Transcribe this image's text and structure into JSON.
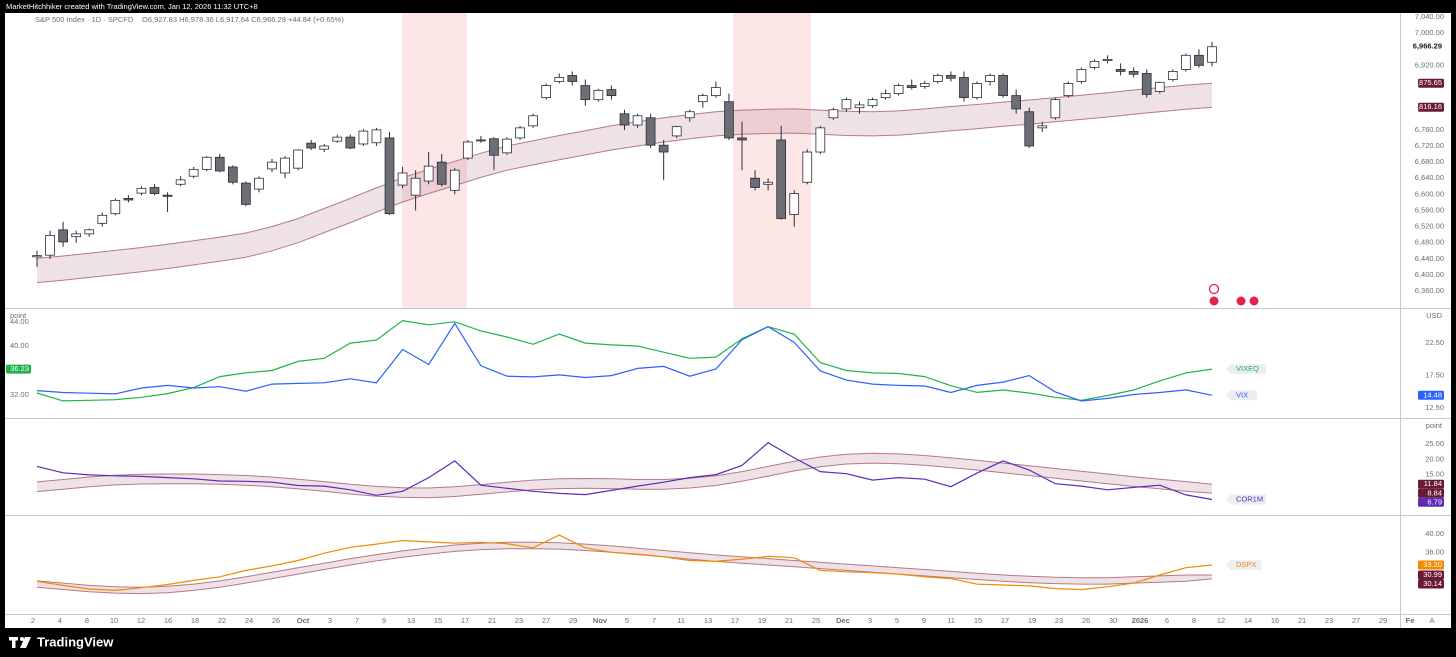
{
  "header": {
    "creator": "MarketHitchhiker created with TradingView.com, Jan 12, 2026 11:32 UTC+8"
  },
  "footer": {
    "brand": "TradingView",
    "scale_button": "A"
  },
  "chart_data": [
    {
      "type": "candlestick",
      "title": "S&P 500 Index · 1D · SPCFD",
      "quote": "O6,927.83 H6,978.36 L6,917.64 C6,966.29 +44.84 (+0.65%)",
      "up_color": "#ffffff",
      "down_color": "#6d6e75",
      "wick_color": "#2a2e39",
      "open": [
        6445,
        6449,
        6512,
        6495,
        6502,
        6528,
        6552,
        6590,
        6603,
        6617,
        6598,
        6625,
        6645,
        6662,
        6692,
        6668,
        6628,
        6613,
        6663,
        6653,
        6665,
        6727,
        6712,
        6732,
        6742,
        6725,
        6728,
        6740,
        6623,
        6598,
        6633,
        6680,
        6610,
        6690,
        6735,
        6738,
        6703,
        6740,
        6770,
        6840,
        6880,
        6895,
        6870,
        6835,
        6860,
        6800,
        6772,
        6790,
        6722,
        6745,
        6790,
        6830,
        6845,
        6830,
        6740,
        6640,
        6625,
        6735,
        6550,
        6630,
        6705,
        6790,
        6812,
        6815,
        6820,
        6840,
        6850,
        6870,
        6868,
        6880,
        6895,
        6890,
        6840,
        6880,
        6895,
        6845,
        6805,
        6765,
        6790,
        6845,
        6880,
        6915,
        6932,
        6910,
        6905,
        6900,
        6855,
        6885,
        6910,
        6945,
        6927.83
      ],
      "high": [
        6460,
        6510,
        6532,
        6510,
        6515,
        6555,
        6590,
        6598,
        6620,
        6625,
        6605,
        6645,
        6668,
        6695,
        6700,
        6672,
        6632,
        6645,
        6688,
        6695,
        6712,
        6735,
        6725,
        6748,
        6748,
        6762,
        6765,
        6755,
        6668,
        6660,
        6705,
        6700,
        6665,
        6735,
        6745,
        6742,
        6742,
        6770,
        6800,
        6875,
        6900,
        6905,
        6885,
        6862,
        6870,
        6810,
        6800,
        6800,
        6735,
        6770,
        6810,
        6850,
        6880,
        6850,
        6780,
        6660,
        6640,
        6770,
        6610,
        6712,
        6770,
        6815,
        6840,
        6830,
        6840,
        6860,
        6875,
        6885,
        6882,
        6900,
        6905,
        6905,
        6880,
        6900,
        6900,
        6860,
        6815,
        6780,
        6840,
        6880,
        6915,
        6935,
        6945,
        6925,
        6915,
        6910,
        6880,
        6910,
        6950,
        6960,
        6978.36
      ],
      "low": [
        6420,
        6440,
        6470,
        6480,
        6495,
        6520,
        6548,
        6580,
        6598,
        6598,
        6556,
        6620,
        6640,
        6658,
        6655,
        6625,
        6570,
        6605,
        6655,
        6640,
        6660,
        6710,
        6705,
        6728,
        6712,
        6720,
        6720,
        6549,
        6615,
        6560,
        6625,
        6620,
        6600,
        6685,
        6728,
        6660,
        6698,
        6735,
        6765,
        6835,
        6875,
        6870,
        6820,
        6830,
        6835,
        6760,
        6765,
        6715,
        6635,
        6740,
        6780,
        6815,
        6840,
        6735,
        6660,
        6610,
        6610,
        6537,
        6520,
        6625,
        6700,
        6785,
        6805,
        6800,
        6815,
        6835,
        6845,
        6860,
        6862,
        6875,
        6880,
        6830,
        6835,
        6870,
        6840,
        6800,
        6715,
        6755,
        6785,
        6840,
        6875,
        6910,
        6925,
        6895,
        6890,
        6840,
        6850,
        6880,
        6905,
        6915,
        6917.64
      ],
      "close": [
        6448,
        6498,
        6482,
        6502,
        6512,
        6548,
        6585,
        6586,
        6615,
        6602,
        6595,
        6636,
        6662,
        6692,
        6658,
        6630,
        6575,
        6640,
        6680,
        6690,
        6710,
        6715,
        6720,
        6742,
        6715,
        6757,
        6760,
        6552,
        6653,
        6640,
        6670,
        6625,
        6660,
        6730,
        6733,
        6697,
        6737,
        6765,
        6795,
        6870,
        6890,
        6880,
        6835,
        6858,
        6845,
        6772,
        6795,
        6722,
        6705,
        6768,
        6805,
        6845,
        6865,
        6740,
        6735,
        6617,
        6630,
        6540,
        6602,
        6705,
        6765,
        6810,
        6835,
        6822,
        6835,
        6850,
        6870,
        6865,
        6875,
        6895,
        6888,
        6840,
        6875,
        6895,
        6845,
        6812,
        6720,
        6770,
        6835,
        6875,
        6910,
        6930,
        6935,
        6905,
        6898,
        6848,
        6878,
        6905,
        6945,
        6920,
        6966.29
      ],
      "close_last_label": "6,966.29",
      "band": {
        "color": "#b5798c",
        "upper": [
          6441,
          6447,
          6454,
          6461,
          6468,
          6476,
          6485,
          6494,
          6504,
          6520,
          6540,
          6565,
          6590,
          6616,
          6641,
          6662,
          6682,
          6702,
          6720,
          6733,
          6746,
          6758,
          6770,
          6780,
          6790,
          6798,
          6805,
          6809,
          6811,
          6812,
          6809,
          6806,
          6805,
          6807,
          6812,
          6818,
          6823,
          6829,
          6834,
          6840,
          6846,
          6852,
          6859,
          6865,
          6871,
          6875.65
        ],
        "lower": [
          6381,
          6387,
          6394,
          6401,
          6408,
          6416,
          6425,
          6434,
          6444,
          6460,
          6480,
          6505,
          6530,
          6556,
          6581,
          6602,
          6622,
          6642,
          6660,
          6673,
          6686,
          6698,
          6710,
          6720,
          6730,
          6738,
          6745,
          6749,
          6751,
          6752,
          6749,
          6746,
          6745,
          6747,
          6752,
          6758,
          6763,
          6769,
          6774,
          6780,
          6786,
          6792,
          6799,
          6805,
          6811,
          6816.16
        ],
        "upper_last_label": "6,875.65",
        "lower_last_label": "6,816.16"
      },
      "ylim": [
        6318,
        7050
      ],
      "yticks": [
        {
          "value": 7040,
          "label": "7,040.00"
        },
        {
          "value": 7000,
          "label": "7,000.00"
        },
        {
          "value": 6920,
          "label": "6,920.00"
        },
        {
          "value": 6760,
          "label": "6,760.00"
        },
        {
          "value": 6720,
          "label": "6,720.00"
        },
        {
          "value": 6680,
          "label": "6,680.00"
        },
        {
          "value": 6640,
          "label": "6,640.00"
        },
        {
          "value": 6600,
          "label": "6,600.00"
        },
        {
          "value": 6560,
          "label": "6,560.00"
        },
        {
          "value": 6520,
          "label": "6,520.00"
        },
        {
          "value": 6480,
          "label": "6,480.00"
        },
        {
          "value": 6440,
          "label": "6,440.00"
        },
        {
          "value": 6400,
          "label": "6,400.00"
        },
        {
          "value": 6360,
          "label": "6,360.00"
        }
      ],
      "date_labels": [
        "2",
        "4",
        "8",
        "10",
        "12",
        "16",
        "18",
        "22",
        "24",
        "26",
        "Oct",
        "3",
        "7",
        "9",
        "13",
        "15",
        "17",
        "21",
        "23",
        "27",
        "29",
        "Nov",
        "5",
        "7",
        "11",
        "13",
        "17",
        "19",
        "21",
        "25",
        "Dec",
        "3",
        "5",
        "9",
        "11",
        "15",
        "17",
        "19",
        "23",
        "26",
        "30",
        "2026",
        "6",
        "8",
        "12",
        "14",
        "16",
        "21",
        "23",
        "27",
        "29",
        "Fe"
      ],
      "grid": false
    },
    {
      "type": "line",
      "units": {
        "left": "point",
        "right": "USD"
      },
      "yaxis_side": "left",
      "ylim": [
        28.2,
        46.1
      ],
      "yticks": [
        {
          "value": 44,
          "label": "44.00"
        },
        {
          "value": 40,
          "label": "40.00"
        },
        {
          "value": 32,
          "label": "32.00"
        }
      ],
      "y2lim": [
        11.0,
        27.7
      ],
      "y2ticks": [
        {
          "value": 22.5,
          "label": "22.50"
        },
        {
          "value": 17.5,
          "label": "17.50"
        },
        {
          "value": 12.5,
          "label": "12.50"
        }
      ],
      "series": [
        {
          "name": "VIXEQ",
          "color": "#1fb34a",
          "last_label": "36.23",
          "values": [
            32.3,
            31.0,
            31.1,
            31.2,
            31.6,
            32.2,
            33.2,
            35.0,
            35.6,
            36.0,
            37.5,
            38.0,
            40.5,
            41.0,
            44.2,
            43.5,
            44.0,
            42.5,
            41.5,
            40.3,
            42.0,
            40.5,
            40.2,
            40.0,
            39.0,
            38.0,
            38.2,
            41.2,
            43.2,
            42.0,
            37.3,
            36.0,
            35.6,
            35.5,
            35.0,
            33.5,
            32.4,
            32.8,
            32.3,
            31.6,
            31.1,
            31.9,
            32.8,
            34.3,
            35.6,
            36.23
          ]
        },
        {
          "name": "VIX",
          "color": "#2962ff",
          "axis": "y2",
          "last_label": "14.48",
          "values": [
            15.2,
            14.9,
            14.8,
            14.7,
            15.6,
            16.0,
            15.6,
            15.8,
            15.1,
            16.2,
            16.3,
            16.4,
            17.0,
            16.4,
            21.5,
            19.2,
            25.5,
            19.0,
            17.4,
            17.3,
            17.6,
            17.2,
            17.5,
            18.6,
            18.9,
            17.4,
            18.5,
            23.0,
            25.0,
            22.6,
            18.2,
            16.8,
            16.2,
            16.0,
            15.9,
            14.9,
            16.0,
            16.5,
            17.5,
            15.0,
            13.6,
            14.0,
            14.6,
            14.9,
            15.3,
            14.48
          ]
        }
      ],
      "grid": false
    },
    {
      "type": "line",
      "units": {
        "right": "point"
      },
      "yaxis_side": "right",
      "ylim": [
        1.7,
        33.3
      ],
      "yticks": [
        {
          "value": 25,
          "label": "25.00"
        },
        {
          "value": 20,
          "label": "20.00"
        },
        {
          "value": 15,
          "label": "15.00"
        }
      ],
      "series": [
        {
          "name": "COR1M",
          "color": "#5e2ab8",
          "last_label": "6.79",
          "values": [
            17.7,
            15.6,
            14.9,
            14.6,
            14.4,
            14.0,
            13.6,
            12.9,
            12.8,
            12.5,
            11.4,
            11.2,
            10.0,
            8.2,
            9.5,
            14.0,
            19.5,
            11.5,
            10.5,
            9.5,
            8.8,
            8.4,
            9.8,
            11.2,
            12.5,
            14.0,
            15.0,
            18.0,
            25.5,
            20.5,
            16.0,
            15.3,
            13.2,
            14.0,
            13.5,
            11.0,
            15.5,
            19.5,
            16.5,
            12.0,
            11.2,
            10.0,
            10.8,
            11.5,
            8.3,
            6.79
          ]
        }
      ],
      "band": {
        "color": "#b5798c",
        "upper": [
          12.6,
          13.4,
          14.2,
          14.8,
          15.1,
          15.2,
          15.2,
          15.0,
          14.7,
          14.2,
          13.5,
          12.7,
          11.8,
          11.1,
          10.7,
          10.6,
          11.0,
          11.7,
          12.5,
          13.2,
          13.6,
          13.7,
          13.6,
          13.4,
          13.4,
          13.8,
          14.6,
          16.0,
          17.7,
          19.4,
          20.8,
          21.7,
          22.0,
          21.8,
          21.3,
          20.5,
          19.7,
          18.8,
          17.9,
          17.0,
          16.1,
          15.2,
          14.3,
          13.5,
          12.7,
          11.84
        ],
        "lower": [
          9.4,
          10.2,
          11.0,
          11.6,
          11.9,
          12.0,
          12.0,
          11.8,
          11.5,
          11.0,
          10.3,
          9.5,
          8.6,
          7.9,
          7.5,
          7.4,
          7.8,
          8.5,
          9.3,
          10.0,
          10.4,
          10.5,
          10.4,
          10.2,
          10.2,
          10.6,
          11.4,
          12.8,
          14.5,
          16.2,
          17.6,
          18.5,
          18.8,
          18.6,
          18.1,
          17.3,
          16.5,
          15.6,
          14.7,
          13.8,
          12.9,
          12.0,
          11.1,
          10.3,
          9.5,
          8.84
        ],
        "upper_last_label": "11.84",
        "lower_last_label": "8.84"
      },
      "grid": false
    },
    {
      "type": "line",
      "yaxis_side": "right",
      "ylim": [
        22.4,
        44
      ],
      "yticks": [
        {
          "value": 40,
          "label": "40.00"
        },
        {
          "value": 36,
          "label": "36.00"
        }
      ],
      "series": [
        {
          "name": "DSPX",
          "color": "#f28a00",
          "last_label": "33.20",
          "values": [
            29.6,
            28.7,
            27.9,
            27.6,
            28.2,
            28.9,
            29.8,
            30.6,
            32.0,
            33.0,
            34.2,
            35.8,
            37.1,
            37.8,
            38.6,
            38.3,
            38.0,
            38.2,
            37.9,
            37.0,
            39.8,
            37.0,
            36.0,
            35.6,
            35.0,
            34.2,
            34.0,
            34.5,
            35.1,
            34.8,
            32.0,
            31.7,
            31.5,
            31.2,
            30.6,
            30.2,
            29.0,
            28.8,
            28.6,
            28.0,
            27.8,
            28.4,
            29.2,
            31.0,
            32.6,
            33.2
          ]
        }
      ],
      "band": {
        "color": "#b5798c",
        "upper": [
          29.7,
          29.2,
          28.7,
          28.4,
          28.3,
          28.5,
          29.0,
          29.7,
          30.6,
          31.6,
          32.6,
          33.6,
          34.6,
          35.5,
          36.3,
          37.0,
          37.6,
          38.0,
          38.2,
          38.2,
          38.1,
          37.8,
          37.4,
          36.9,
          36.4,
          35.9,
          35.4,
          35.0,
          34.6,
          34.2,
          33.8,
          33.4,
          33.0,
          32.6,
          32.2,
          31.8,
          31.4,
          31.0,
          30.7,
          30.5,
          30.4,
          30.4,
          30.6,
          30.8,
          31.0,
          30.99
        ],
        "lower": [
          28.3,
          27.8,
          27.3,
          27.0,
          26.9,
          27.1,
          27.6,
          28.3,
          29.2,
          30.2,
          31.2,
          32.2,
          33.2,
          34.1,
          34.9,
          35.6,
          36.2,
          36.6,
          36.8,
          36.8,
          36.7,
          36.4,
          36.0,
          35.5,
          35.0,
          34.5,
          34.0,
          33.6,
          33.2,
          32.8,
          32.4,
          32.0,
          31.6,
          31.2,
          30.8,
          30.4,
          30.0,
          29.6,
          29.3,
          29.1,
          29.0,
          29.0,
          29.2,
          29.4,
          29.6,
          30.14
        ],
        "upper_last_label": "30.99",
        "lower_last_label": "30.14"
      },
      "grid": false
    }
  ]
}
